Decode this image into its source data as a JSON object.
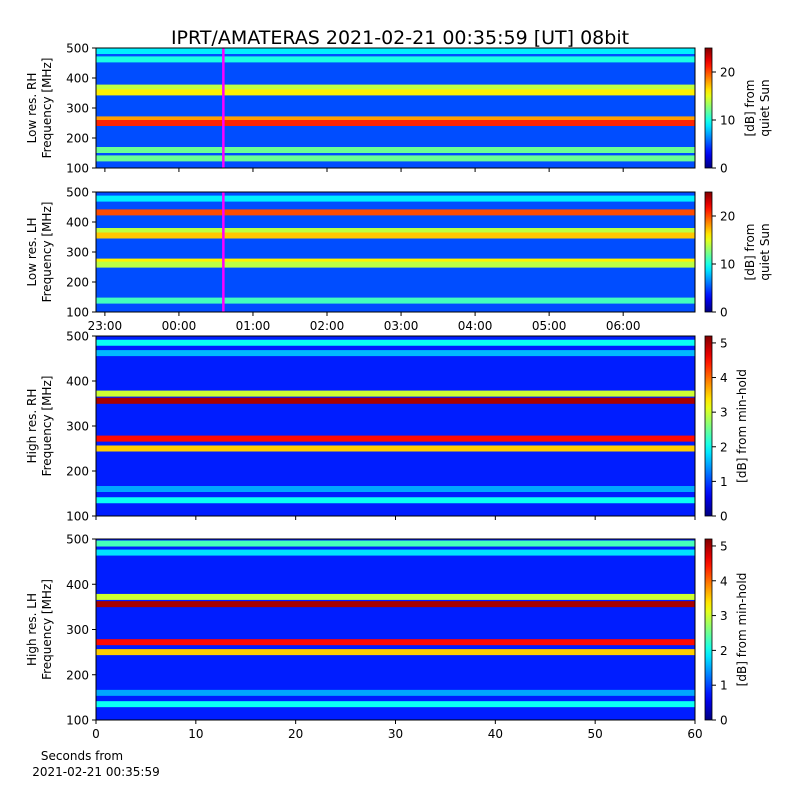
{
  "title": "IPRT/AMATERAS 2021-02-21 00:35:59 [UT]   08bit",
  "chart_data": [
    {
      "type": "spectrogram",
      "ylabel": [
        "Low res. RH",
        "Frequency [MHz]"
      ],
      "ylim": [
        100,
        500
      ],
      "yticks": [
        100,
        200,
        300,
        400,
        500
      ],
      "xlim": [
        -1.12,
        6.97
      ],
      "xticks": [
        -1,
        0,
        1,
        2,
        3,
        4,
        5,
        6
      ],
      "tick_labels": false,
      "marker": 0.6,
      "marker_color": "#ff00ff",
      "floor": 5,
      "frequencies": [
        490,
        462,
        368,
        352,
        262,
        250,
        160,
        132
      ],
      "values": [
        9,
        10,
        14,
        16,
        18,
        21,
        12,
        12
      ],
      "clim": [
        0,
        25
      ],
      "cticks": [
        0,
        10,
        20
      ],
      "clabel": [
        "[dB] from",
        "quiet Sun"
      ],
      "cmap": "jet"
    },
    {
      "type": "spectrogram",
      "ylabel": [
        "Low res. LH",
        "Frequency [MHz]"
      ],
      "ylim": [
        100,
        500
      ],
      "yticks": [
        100,
        200,
        300,
        400,
        500
      ],
      "xlim": [
        -1.12,
        6.97
      ],
      "xticks": [
        {
          "value": -1,
          "label": "23:00"
        },
        {
          "value": 0,
          "label": "00:00"
        },
        {
          "value": 1,
          "label": "01:00"
        },
        {
          "value": 2,
          "label": "02:00"
        },
        {
          "value": 3,
          "label": "03:00"
        },
        {
          "value": 4,
          "label": "04:00"
        },
        {
          "value": 5,
          "label": "05:00"
        },
        {
          "value": 6,
          "label": "06:00"
        }
      ],
      "tick_labels": true,
      "marker": 0.6,
      "marker_color": "#ff00ff",
      "floor": 5,
      "frequencies": [
        478,
        432,
        370,
        355,
        268,
        258,
        138
      ],
      "values": [
        9,
        20,
        14,
        17,
        16,
        14,
        11
      ],
      "clim": [
        0,
        25
      ],
      "cticks": [
        0,
        10,
        20
      ],
      "clabel": [
        "[dB] from",
        "quiet Sun"
      ],
      "cmap": "jet"
    },
    {
      "type": "spectrogram",
      "ylabel": [
        "High res. RH",
        "Frequency [MHz]"
      ],
      "ylim": [
        100,
        500
      ],
      "yticks": [
        100,
        200,
        300,
        400,
        500
      ],
      "xlim": [
        0,
        60
      ],
      "xticks": [
        0,
        10,
        20,
        30,
        40,
        50,
        60
      ],
      "tick_labels": false,
      "floor": 0.8,
      "frequencies": [
        485,
        462,
        372,
        356,
        272,
        250,
        160,
        135
      ],
      "values": [
        2,
        1.6,
        3,
        5,
        4.5,
        3.5,
        1.5,
        2
      ],
      "clim": [
        0,
        5.2
      ],
      "cticks": [
        0,
        1,
        2,
        3,
        4,
        5
      ],
      "clabel": [
        "[dB] from min-hold"
      ],
      "cmap": "jet"
    },
    {
      "type": "spectrogram",
      "ylabel": [
        "High res. LH",
        "Frequency [MHz]"
      ],
      "ylim": [
        100,
        500
      ],
      "yticks": [
        100,
        200,
        300,
        400,
        500
      ],
      "xlim": [
        0,
        60
      ],
      "xticks": [
        0,
        10,
        20,
        30,
        40,
        50,
        60
      ],
      "tick_labels": true,
      "xlabel": [
        "Seconds from",
        "2021-02-21 00:35:59"
      ],
      "floor": 0.8,
      "frequencies": [
        490,
        470,
        372,
        356,
        272,
        250,
        160,
        135
      ],
      "values": [
        2.3,
        1.8,
        3,
        5,
        4.5,
        3.5,
        1.5,
        2
      ],
      "clim": [
        0,
        5.2
      ],
      "cticks": [
        0,
        1,
        2,
        3,
        4,
        5
      ],
      "clabel": [
        "[dB] from min-hold"
      ],
      "cmap": "jet"
    }
  ]
}
